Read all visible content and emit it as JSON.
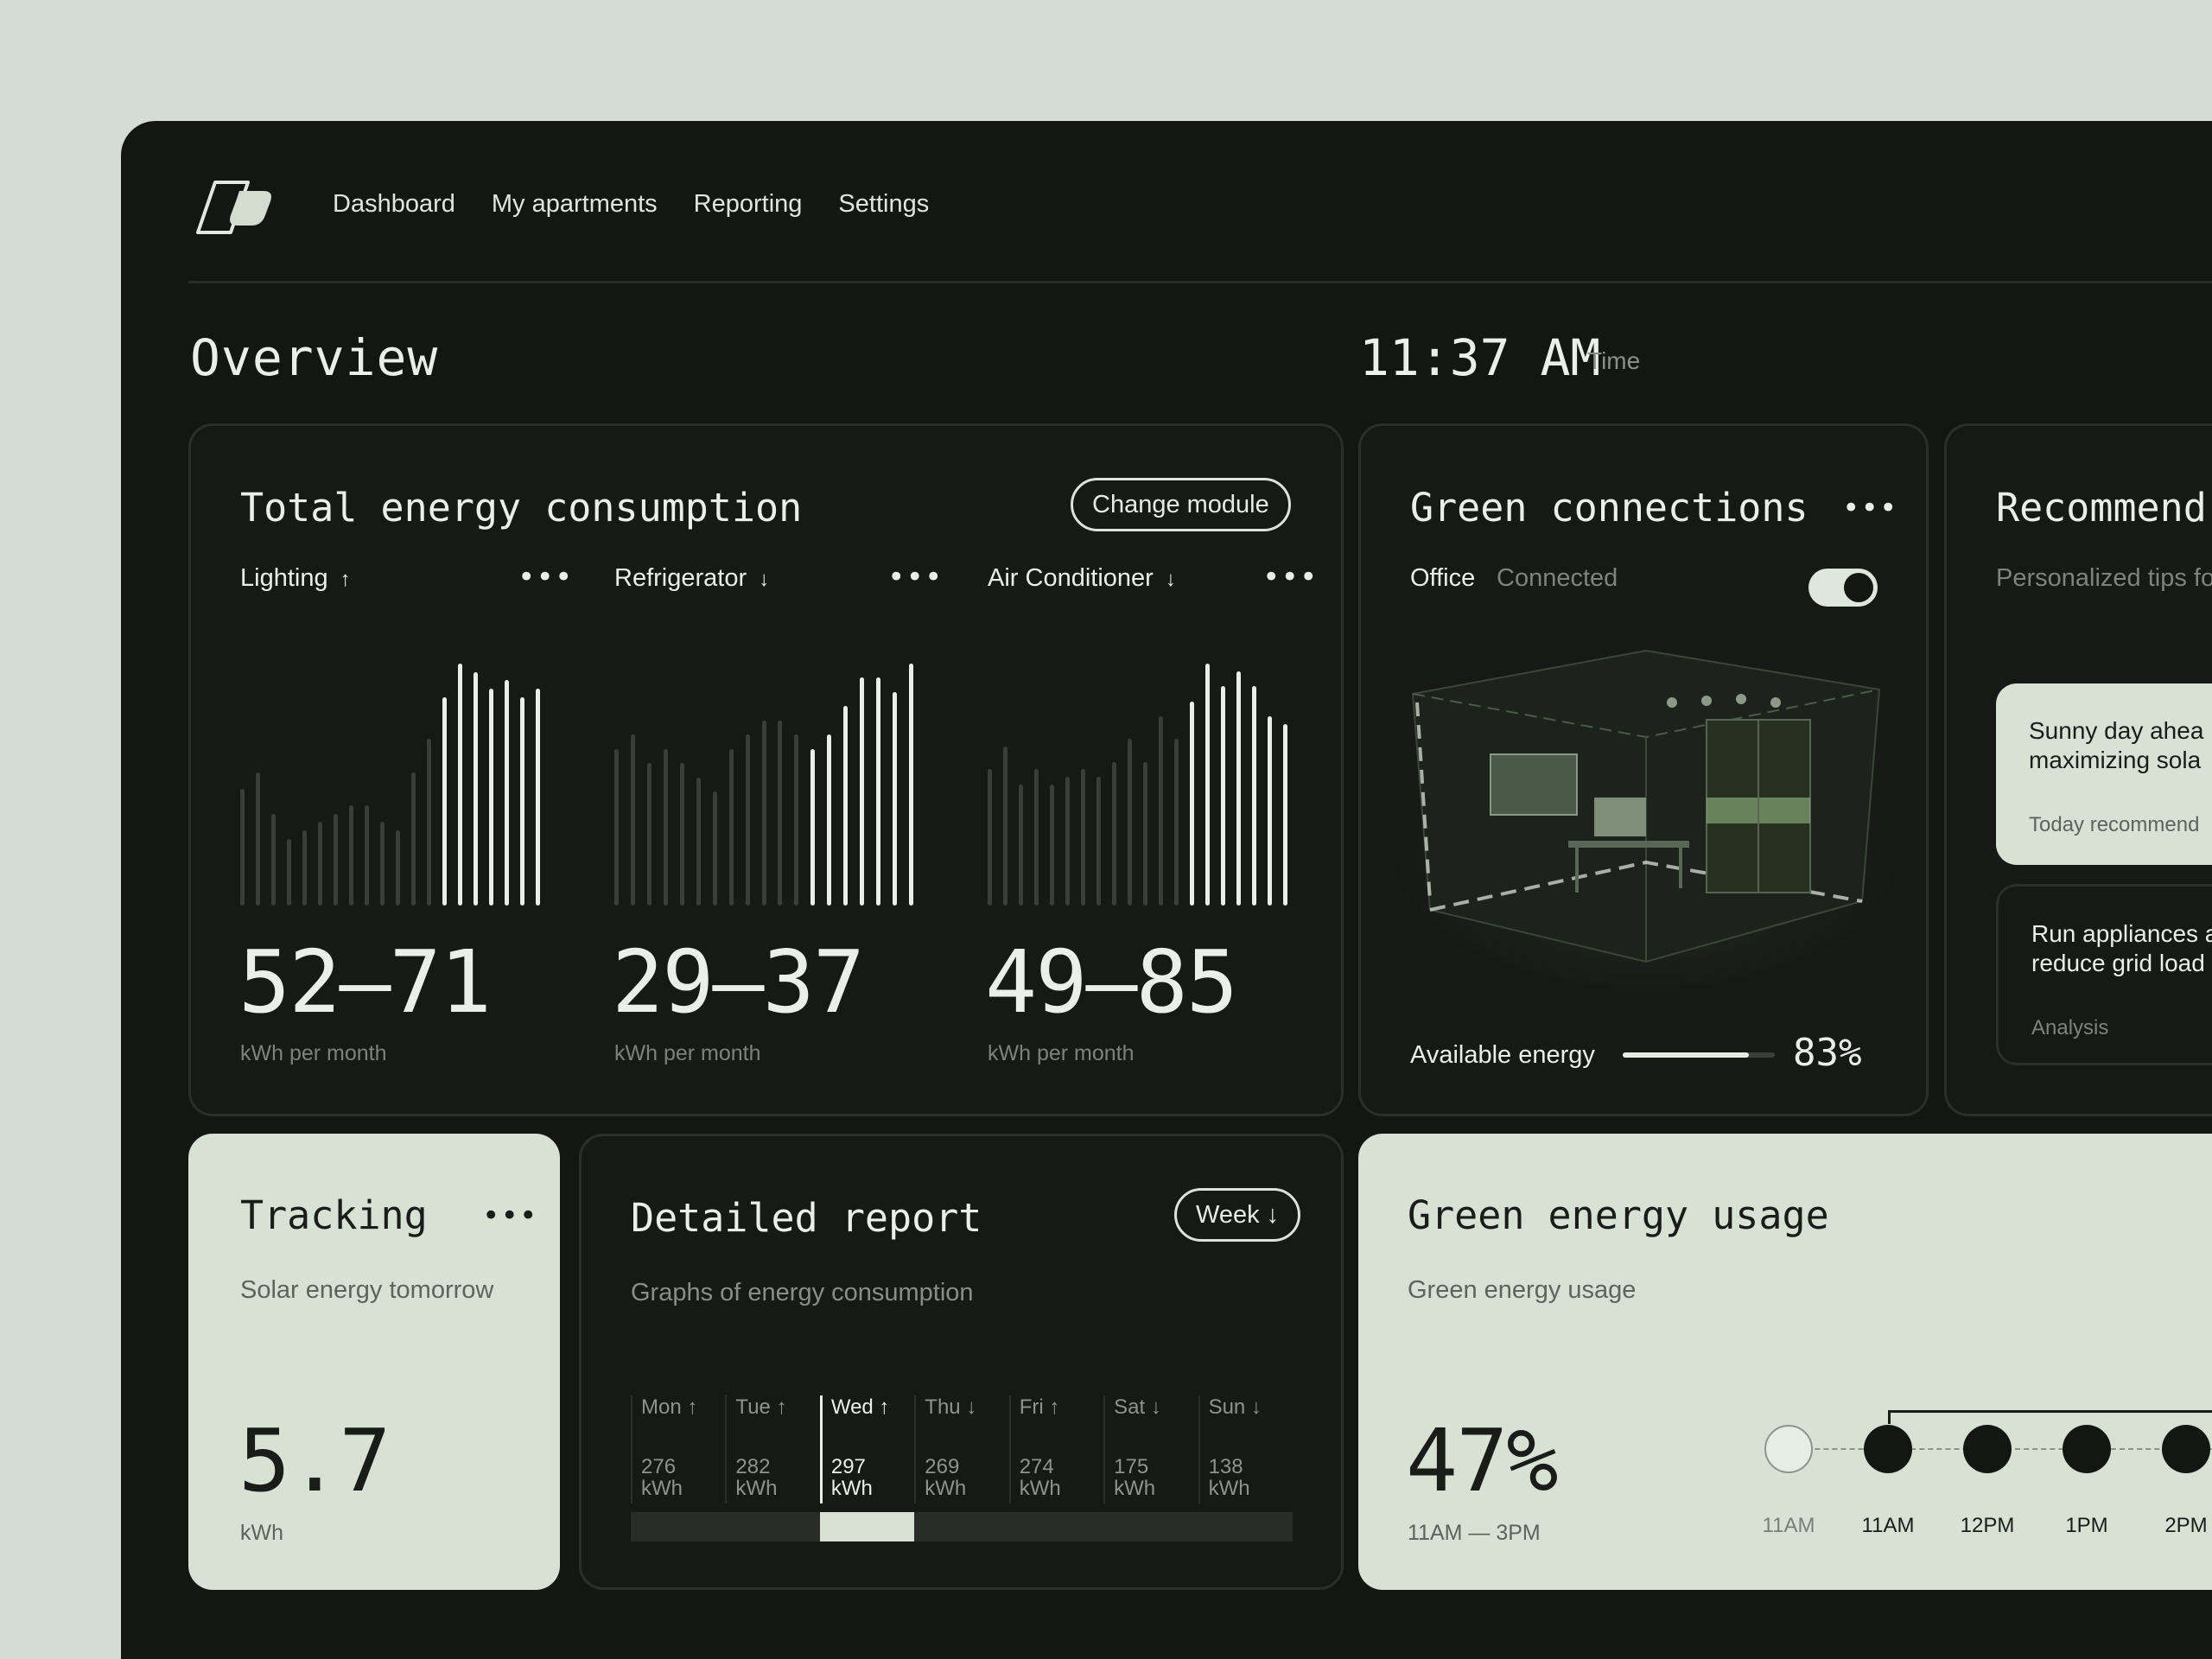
{
  "nav": {
    "items": [
      {
        "label": "Dashboard"
      },
      {
        "label": "My apartments"
      },
      {
        "label": "Reporting"
      },
      {
        "label": "Settings"
      }
    ]
  },
  "header": {
    "title": "Overview",
    "time": "11:37 AM",
    "time_label": "Time"
  },
  "energy_card": {
    "title": "Total energy consumption",
    "change_button": "Change module",
    "modules": [
      {
        "name": "Lighting",
        "trend": "↑",
        "range": "52–71",
        "unit": "kWh per month"
      },
      {
        "name": "Refrigerator",
        "trend": "↓",
        "range": "29–37",
        "unit": "kWh per month"
      },
      {
        "name": "Air Conditioner",
        "trend": "↓",
        "range": "49–85",
        "unit": "kWh per month"
      }
    ]
  },
  "green_connections": {
    "title": "Green connections",
    "location": "Office",
    "status": "Connected",
    "toggle_on": true,
    "available_label": "Available energy",
    "available_value": "83%",
    "available_fraction": 0.83
  },
  "recommendations": {
    "title": "Recommend",
    "subtitle": "Personalized tips fo",
    "tips": [
      {
        "line1": "Sunny day ahea",
        "line2": "maximizing sola",
        "meta": "Today recommend"
      },
      {
        "line1": "Run appliances a",
        "line2": "reduce grid load",
        "meta": "Analysis"
      }
    ]
  },
  "tracking": {
    "title": "Tracking",
    "subtitle": "Solar energy tomorrow",
    "value": "5.7",
    "unit": "kWh"
  },
  "report": {
    "title": "Detailed report",
    "subtitle": "Graphs of energy consumption",
    "period_button": "Week ↓",
    "days": [
      {
        "day": "Mon",
        "trend": "↑",
        "value": "276",
        "unit": "kWh"
      },
      {
        "day": "Tue",
        "trend": "↑",
        "value": "282",
        "unit": "kWh"
      },
      {
        "day": "Wed",
        "trend": "↑",
        "value": "297",
        "unit": "kWh"
      },
      {
        "day": "Thu",
        "trend": "↓",
        "value": "269",
        "unit": "kWh"
      },
      {
        "day": "Fri",
        "trend": "↑",
        "value": "274",
        "unit": "kWh"
      },
      {
        "day": "Sat",
        "trend": "↓",
        "value": "175",
        "unit": "kWh"
      },
      {
        "day": "Sun",
        "trend": "↓",
        "value": "138",
        "unit": "kWh"
      }
    ],
    "selected_day": "Wed"
  },
  "green_usage": {
    "title": "Green energy usage",
    "subtitle": "Green energy usage",
    "value": "47%",
    "range": "11AM — 3PM",
    "timeline": [
      "11AM",
      "11AM",
      "12PM",
      "1PM",
      "2PM"
    ]
  },
  "chart_data": [
    {
      "type": "bar",
      "title": "Lighting",
      "values": [
        14,
        16,
        11,
        8,
        9,
        10,
        11,
        12,
        12,
        10,
        9,
        16,
        20,
        25,
        29,
        28,
        26,
        27,
        25,
        26
      ],
      "highlight_from_index": 13
    },
    {
      "type": "bar",
      "title": "Refrigerator",
      "values": [
        11,
        12,
        10,
        11,
        10,
        9,
        8,
        11,
        12,
        13,
        13,
        12,
        11,
        12,
        14,
        16,
        16,
        15,
        17
      ],
      "highlight_from_index": 12
    },
    {
      "type": "bar",
      "title": "Air Conditioner",
      "values": [
        18,
        21,
        16,
        18,
        16,
        17,
        18,
        17,
        19,
        22,
        19,
        25,
        22,
        27,
        32,
        29,
        31,
        29,
        25,
        24
      ],
      "highlight_from_index": 13
    }
  ],
  "colors": {
    "background": "#d5dcd5",
    "panel": "#141614",
    "card_light": "#d7e1d4",
    "accent_text": "#eceee9"
  }
}
